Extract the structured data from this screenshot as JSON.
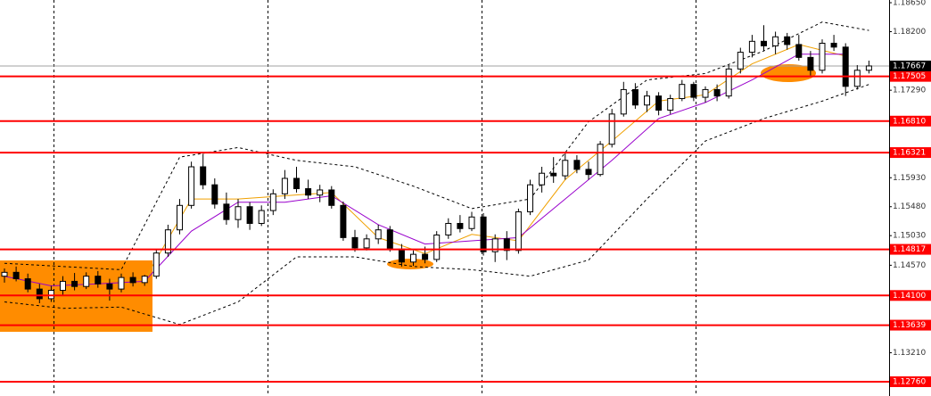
{
  "chart_data": {
    "type": "candlestick",
    "ylim": [
      1.12538,
      1.18692
    ],
    "yticks": [
      {
        "value": 1.1865,
        "label": "1.18650"
      },
      {
        "value": 1.182,
        "label": "1.18200"
      },
      {
        "value": 1.1729,
        "label": "1.17290"
      },
      {
        "value": 1.1593,
        "label": "1.15930"
      },
      {
        "value": 1.1548,
        "label": "1.15480"
      },
      {
        "value": 1.1503,
        "label": "1.15030"
      },
      {
        "value": 1.1457,
        "label": "1.14570"
      },
      {
        "value": 1.1321,
        "label": "1.13210"
      }
    ],
    "grid": false,
    "bull_color": "#ffffff",
    "bear_color": "#000000",
    "candles": [
      [
        1.144,
        1.1452,
        1.143,
        1.1446
      ],
      [
        1.1446,
        1.1455,
        1.1432,
        1.1436
      ],
      [
        1.1436,
        1.1444,
        1.1415,
        1.142
      ],
      [
        1.142,
        1.1428,
        1.1398,
        1.1405
      ],
      [
        1.1405,
        1.1425,
        1.14,
        1.1418
      ],
      [
        1.1418,
        1.144,
        1.141,
        1.1432
      ],
      [
        1.1432,
        1.1445,
        1.1418,
        1.1424
      ],
      [
        1.1424,
        1.1446,
        1.142,
        1.144
      ],
      [
        1.144,
        1.1448,
        1.1422,
        1.1428
      ],
      [
        1.1428,
        1.1436,
        1.1402,
        1.142
      ],
      [
        1.142,
        1.1444,
        1.1415,
        1.1438
      ],
      [
        1.1438,
        1.1446,
        1.1424,
        1.143
      ],
      [
        1.143,
        1.1442,
        1.1425,
        1.144
      ],
      [
        1.144,
        1.1482,
        1.1436,
        1.1476
      ],
      [
        1.1476,
        1.152,
        1.147,
        1.1512
      ],
      [
        1.1512,
        1.156,
        1.1505,
        1.155
      ],
      [
        1.155,
        1.1618,
        1.1545,
        1.161
      ],
      [
        1.161,
        1.163,
        1.1575,
        1.1582
      ],
      [
        1.1582,
        1.1592,
        1.1545,
        1.1552
      ],
      [
        1.1552,
        1.157,
        1.152,
        1.1528
      ],
      [
        1.1528,
        1.156,
        1.1515,
        1.1548
      ],
      [
        1.1548,
        1.1555,
        1.1512,
        1.1522
      ],
      [
        1.1522,
        1.155,
        1.1518,
        1.1542
      ],
      [
        1.1542,
        1.1575,
        1.1535,
        1.1568
      ],
      [
        1.1568,
        1.1605,
        1.156,
        1.1592
      ],
      [
        1.1592,
        1.161,
        1.157,
        1.1576
      ],
      [
        1.1576,
        1.159,
        1.156,
        1.1566
      ],
      [
        1.1566,
        1.1582,
        1.1555,
        1.1574
      ],
      [
        1.1574,
        1.158,
        1.1545,
        1.155
      ],
      [
        1.155,
        1.1556,
        1.1495,
        1.15
      ],
      [
        1.15,
        1.1512,
        1.1478,
        1.1484
      ],
      [
        1.1484,
        1.1505,
        1.148,
        1.1498
      ],
      [
        1.1498,
        1.152,
        1.149,
        1.1512
      ],
      [
        1.1512,
        1.1518,
        1.1478,
        1.1482
      ],
      [
        1.1482,
        1.149,
        1.1455,
        1.1462
      ],
      [
        1.1462,
        1.148,
        1.1456,
        1.1474
      ],
      [
        1.1474,
        1.1486,
        1.146,
        1.1466
      ],
      [
        1.1466,
        1.151,
        1.1462,
        1.1504
      ],
      [
        1.1504,
        1.153,
        1.1498,
        1.1522
      ],
      [
        1.1522,
        1.1535,
        1.1508,
        1.1514
      ],
      [
        1.1514,
        1.154,
        1.151,
        1.1532
      ],
      [
        1.1532,
        1.1538,
        1.1472,
        1.1478
      ],
      [
        1.1478,
        1.1505,
        1.1462,
        1.1498
      ],
      [
        1.1498,
        1.151,
        1.1465,
        1.148
      ],
      [
        1.148,
        1.1545,
        1.1475,
        1.154
      ],
      [
        1.154,
        1.159,
        1.1535,
        1.1582
      ],
      [
        1.1582,
        1.161,
        1.157,
        1.16
      ],
      [
        1.16,
        1.1625,
        1.1585,
        1.1596
      ],
      [
        1.1596,
        1.1632,
        1.159,
        1.162
      ],
      [
        1.162,
        1.1628,
        1.16,
        1.1606
      ],
      [
        1.1606,
        1.1618,
        1.159,
        1.1598
      ],
      [
        1.1598,
        1.165,
        1.1595,
        1.1645
      ],
      [
        1.1645,
        1.17,
        1.164,
        1.1692
      ],
      [
        1.1692,
        1.1742,
        1.1688,
        1.173
      ],
      [
        1.173,
        1.174,
        1.17,
        1.1706
      ],
      [
        1.1706,
        1.1728,
        1.1695,
        1.172
      ],
      [
        1.172,
        1.1726,
        1.169,
        1.1698
      ],
      [
        1.1698,
        1.1722,
        1.1692,
        1.1716
      ],
      [
        1.1716,
        1.1745,
        1.1712,
        1.1738
      ],
      [
        1.1738,
        1.1742,
        1.1712,
        1.1718
      ],
      [
        1.1718,
        1.1735,
        1.171,
        1.173
      ],
      [
        1.173,
        1.1738,
        1.1712,
        1.172
      ],
      [
        1.172,
        1.1768,
        1.1716,
        1.1762
      ],
      [
        1.1762,
        1.1795,
        1.1755,
        1.1788
      ],
      [
        1.1788,
        1.1815,
        1.178,
        1.1805
      ],
      [
        1.1805,
        1.183,
        1.179,
        1.1798
      ],
      [
        1.1798,
        1.182,
        1.1785,
        1.1812
      ],
      [
        1.1812,
        1.1818,
        1.1792,
        1.18
      ],
      [
        1.18,
        1.1815,
        1.1775,
        1.178
      ],
      [
        1.178,
        1.179,
        1.1752,
        1.176
      ],
      [
        1.176,
        1.1808,
        1.1755,
        1.1802
      ],
      [
        1.1802,
        1.1815,
        1.179,
        1.1796
      ],
      [
        1.1796,
        1.1802,
        1.172,
        1.1735
      ],
      [
        1.1735,
        1.1768,
        1.173,
        1.176
      ],
      [
        1.176,
        1.1775,
        1.1755,
        1.17667
      ]
    ],
    "overlays": [
      {
        "color": "#000000",
        "style": "dashed",
        "x": [
          0,
          5,
          10,
          15,
          20,
          25,
          30,
          35,
          40,
          45,
          50,
          55,
          60,
          65,
          70,
          74
        ],
        "values": [
          1.146,
          1.1455,
          1.145,
          1.1625,
          1.164,
          1.162,
          1.161,
          1.158,
          1.1545,
          1.156,
          1.168,
          1.1745,
          1.1755,
          1.179,
          1.1835,
          1.1822
        ]
      },
      {
        "color": "#000000",
        "style": "dashed",
        "x": [
          0,
          5,
          10,
          15,
          20,
          25,
          30,
          35,
          40,
          45,
          50,
          55,
          60,
          65,
          70,
          74
        ],
        "values": [
          1.14,
          1.139,
          1.1392,
          1.1365,
          1.14,
          1.147,
          1.147,
          1.1455,
          1.145,
          1.144,
          1.1465,
          1.156,
          1.165,
          1.1685,
          1.1712,
          1.1738
        ]
      },
      {
        "color": "#f0a000",
        "style": "solid",
        "x": [
          0,
          4,
          8,
          12,
          16,
          20,
          24,
          28,
          32,
          36,
          40,
          44,
          48,
          52,
          56,
          60,
          64,
          68,
          72
        ],
        "values": [
          1.1442,
          1.1415,
          1.1432,
          1.1435,
          1.156,
          1.156,
          1.1565,
          1.157,
          1.15,
          1.1475,
          1.1505,
          1.1495,
          1.159,
          1.165,
          1.1712,
          1.1722,
          1.177,
          1.18,
          1.1782
        ]
      },
      {
        "color": "#9900cc",
        "style": "solid",
        "x": [
          0,
          4,
          8,
          12,
          16,
          20,
          24,
          28,
          32,
          36,
          40,
          44,
          48,
          52,
          56,
          60,
          64,
          68,
          72
        ],
        "values": [
          1.144,
          1.1425,
          1.1428,
          1.1432,
          1.151,
          1.1555,
          1.1555,
          1.1565,
          1.152,
          1.149,
          1.1495,
          1.15,
          1.156,
          1.162,
          1.1685,
          1.171,
          1.1745,
          1.1785,
          1.1785
        ]
      }
    ],
    "levels_color": "#ff0000",
    "levels": [
      {
        "value": 1.17505,
        "label": "1.17505"
      },
      {
        "value": 1.1681,
        "label": "1.16810"
      },
      {
        "value": 1.16321,
        "label": "1.16321"
      },
      {
        "value": 1.14817,
        "label": "1.14817"
      },
      {
        "value": 1.141,
        "label": "1.14100"
      },
      {
        "value": 1.13639,
        "label": "1.13639"
      },
      {
        "value": 1.1276,
        "label": "1.12760"
      }
    ],
    "last_price": {
      "value": 1.17667,
      "label": "1.17667"
    }
  }
}
